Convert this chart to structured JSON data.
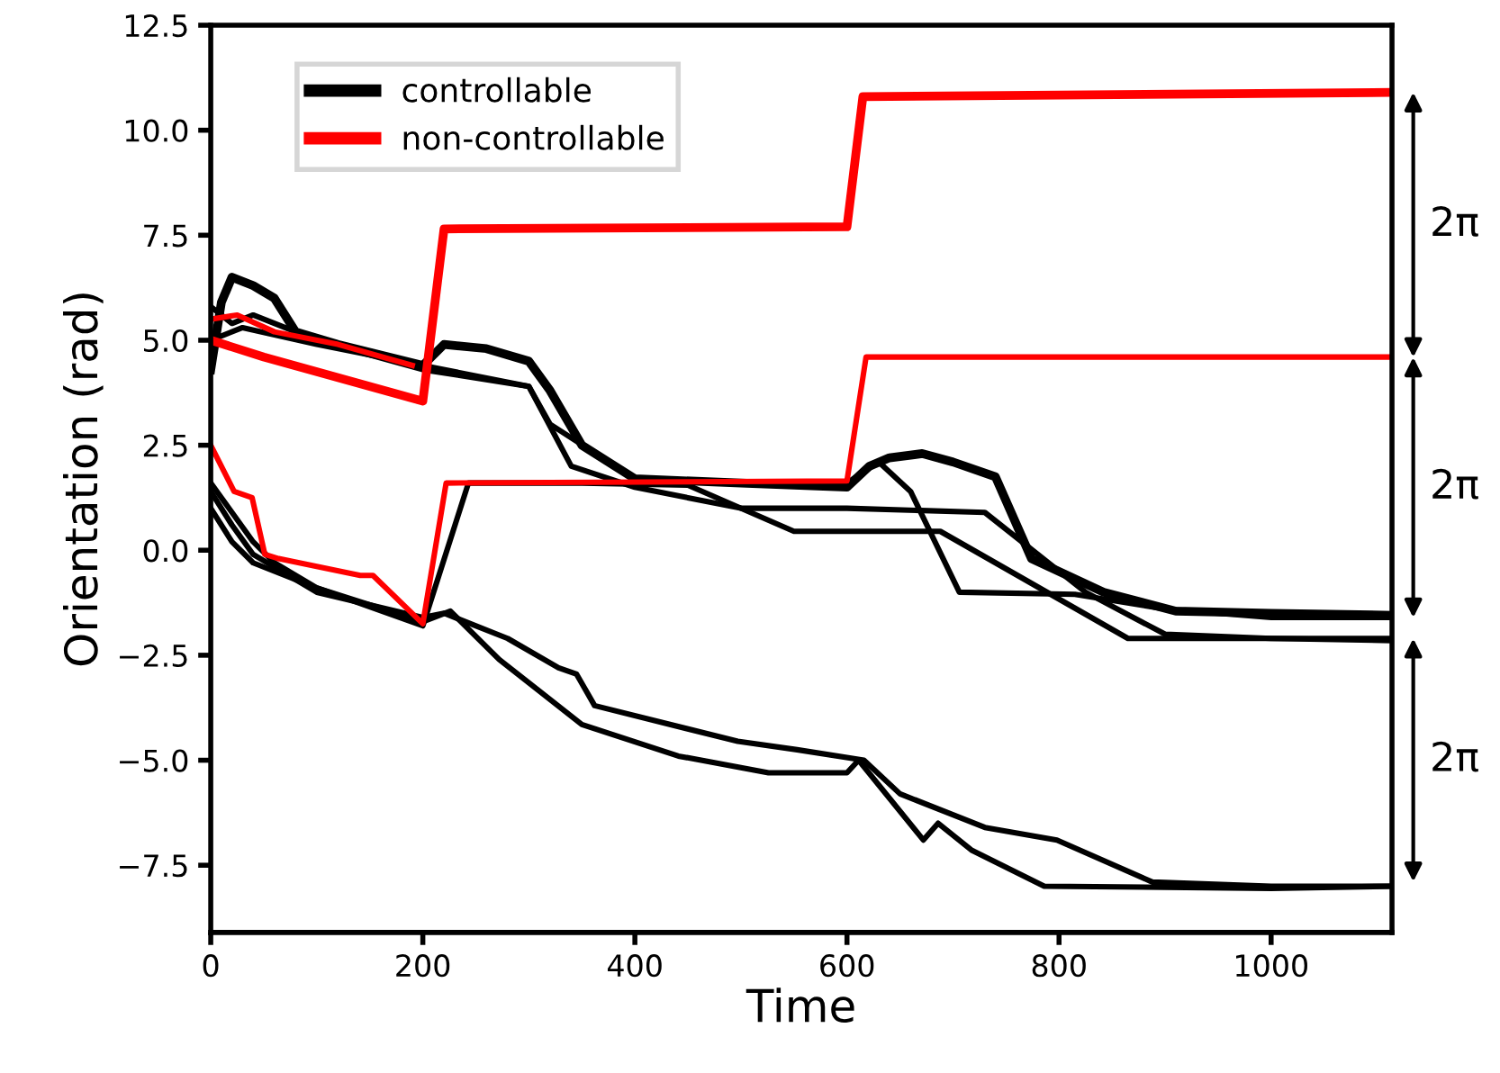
{
  "chart_data": {
    "type": "line",
    "xlabel": "Time",
    "ylabel": "Orientation (rad)",
    "xlim": [
      0,
      1114
    ],
    "xticks": [
      0,
      200,
      400,
      600,
      800,
      1000
    ],
    "ylim": [
      -9.1,
      12.5
    ],
    "yticks": [
      {
        "value": -7.5,
        "label": "−7.5"
      },
      {
        "value": -5,
        "label": "−5.0"
      },
      {
        "value": -2.5,
        "label": "−2.5"
      },
      {
        "value": 0,
        "label": "0.0"
      },
      2.5,
      {
        "value": 5,
        "label": "5.0"
      },
      7.5,
      {
        "value": 10,
        "label": "10.0"
      },
      12.5
    ],
    "grid": false,
    "legend": "top left",
    "line_style": "solid",
    "marker": "none",
    "series": [
      {
        "name": "controllable",
        "color": "#000000",
        "x": [
          0,
          10,
          20,
          40,
          60,
          80,
          120,
          200,
          220,
          260,
          300,
          320,
          350,
          400,
          500,
          600,
          621,
          640,
          671,
          700,
          740,
          774,
          842,
          910,
          1000,
          1114
        ],
        "values": [
          4.3,
          5.9,
          6.5,
          6.3,
          6.0,
          5.2,
          4.9,
          4.4,
          4.9,
          4.8,
          4.5,
          3.8,
          2.5,
          1.7,
          1.6,
          1.5,
          2.0,
          2.2,
          2.3,
          2.1,
          1.75,
          -0.2,
          -1.0,
          -1.45,
          -1.5,
          -1.55
        ]
      },
      {
        "color": "#000000",
        "x": [
          0,
          20,
          40,
          100,
          200,
          300,
          320,
          400,
          500,
          600,
          630,
          660,
          706,
          815,
          900,
          1000,
          1114
        ],
        "values": [
          5.8,
          5.4,
          5.6,
          5.0,
          4.3,
          3.9,
          3.0,
          1.7,
          1.6,
          1.6,
          2.1,
          1.4,
          -1.0,
          -1.05,
          -1.4,
          -1.6,
          -1.6
        ]
      },
      {
        "color": "#000000",
        "x": [
          0,
          30,
          100,
          200,
          300,
          340,
          400,
          500,
          600,
          730,
          825,
          900,
          1000,
          1114
        ],
        "values": [
          5.0,
          5.3,
          4.9,
          4.4,
          3.9,
          2.0,
          1.5,
          1.0,
          1.0,
          0.9,
          -1.0,
          -2.0,
          -2.1,
          -2.1
        ]
      },
      {
        "color": "#000000",
        "x": [
          0,
          20,
          40,
          100,
          200,
          243,
          350,
          450,
          550,
          688,
          865,
          1000,
          1114
        ],
        "values": [
          1.0,
          0.2,
          -0.3,
          -0.9,
          -1.8,
          1.6,
          1.6,
          1.55,
          0.45,
          0.45,
          -2.1,
          -2.1,
          -2.15
        ]
      },
      {
        "color": "#000000",
        "x": [
          0,
          20,
          40,
          60,
          100,
          200,
          220,
          280,
          328,
          345,
          362,
          497,
          553,
          616,
          650,
          730,
          798,
          888,
          1000,
          1114
        ],
        "values": [
          1.4,
          0.6,
          -0.1,
          -0.4,
          -1.0,
          -1.6,
          -1.5,
          -2.1,
          -2.8,
          -2.95,
          -3.7,
          -4.55,
          -4.75,
          -5.0,
          -5.8,
          -6.6,
          -6.9,
          -7.9,
          -8.0,
          -8.0
        ]
      },
      {
        "color": "#000000",
        "x": [
          0,
          20,
          40,
          60,
          100,
          200,
          226,
          272,
          350,
          441,
          526,
          600,
          611,
          672,
          686,
          718,
          786,
          1000,
          1114
        ],
        "values": [
          1.6,
          0.9,
          0.2,
          -0.3,
          -0.9,
          -1.7,
          -1.45,
          -2.6,
          -4.15,
          -4.9,
          -5.3,
          -5.3,
          -5.0,
          -6.9,
          -6.5,
          -7.15,
          -8.0,
          -8.05,
          -8.0
        ]
      },
      {
        "color": "#ff0000",
        "x": [
          0,
          25,
          60,
          120,
          190
        ],
        "values": [
          5.5,
          5.6,
          5.2,
          4.9,
          4.4
        ]
      },
      {
        "color": "#ff0000",
        "x": [
          0,
          22,
          39,
          51,
          64,
          141,
          153,
          200,
          222,
          600,
          618,
          1114
        ],
        "values": [
          2.5,
          1.4,
          1.25,
          -0.1,
          -0.2,
          -0.6,
          -0.6,
          -1.75,
          1.6,
          1.65,
          4.6,
          4.6
        ]
      },
      {
        "name": "non-controllable",
        "color": "#ff0000",
        "x": [
          0,
          50,
          200,
          220,
          600,
          615,
          1114
        ],
        "values": [
          5.0,
          4.6,
          3.55,
          7.65,
          7.7,
          10.8,
          10.9
        ]
      }
    ],
    "annotations": [
      "2π",
      "2π",
      "2π"
    ]
  }
}
